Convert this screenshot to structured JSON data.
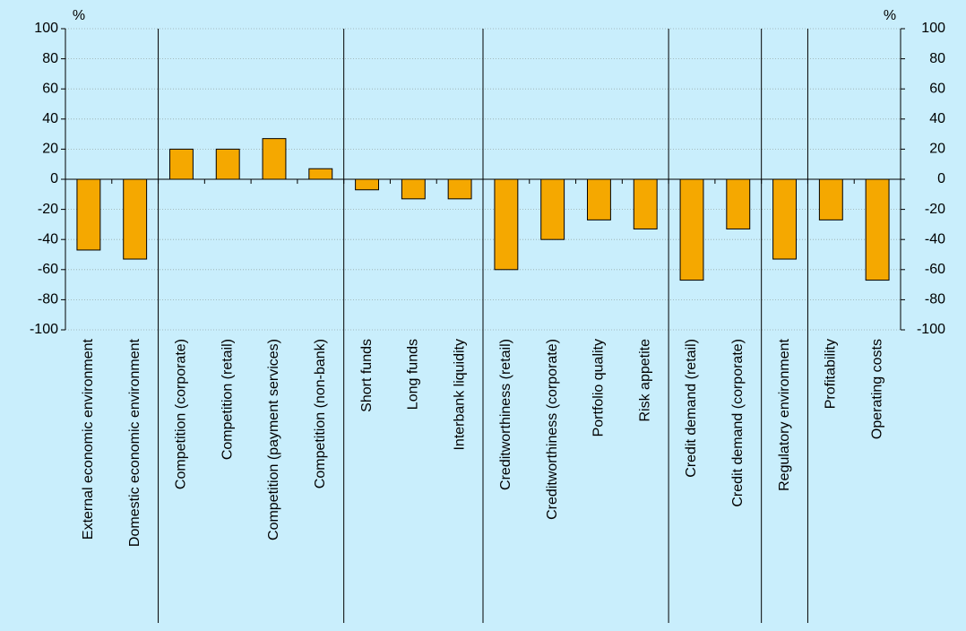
{
  "chart_data": {
    "type": "bar",
    "y_label": "%",
    "y2_label": "%",
    "categories": [
      "External economic environment",
      "Domestic economic environment",
      "Competition (corporate)",
      "Competition (retail)",
      "Competition (payment services)",
      "Competition (non-bank)",
      "Short funds",
      "Long funds",
      "Interbank liquidity",
      "Creditworthiness (retail)",
      "Creditworthiness (corporate)",
      "Portfolio quality",
      "Risk appetite",
      "Credit demand (retail)",
      "Credit demand (corporate)",
      "Regulatory environment",
      "Profitability",
      "Operating costs"
    ],
    "values": [
      -47,
      -53,
      20,
      20,
      27,
      7,
      -7,
      -13,
      -13,
      -60,
      -40,
      -27,
      -33,
      -67,
      -33,
      -53,
      -27,
      -67
    ],
    "color": "#f5a800",
    "ylim": [
      -100,
      100
    ],
    "yticks": [
      -100,
      -80,
      -60,
      -40,
      -20,
      0,
      20,
      40,
      60,
      80,
      100
    ],
    "y2lim": [
      -100,
      100
    ],
    "y2ticks": [
      -100,
      -80,
      -60,
      -40,
      -20,
      0,
      20,
      40,
      60,
      80,
      100
    ],
    "grid": true
  }
}
